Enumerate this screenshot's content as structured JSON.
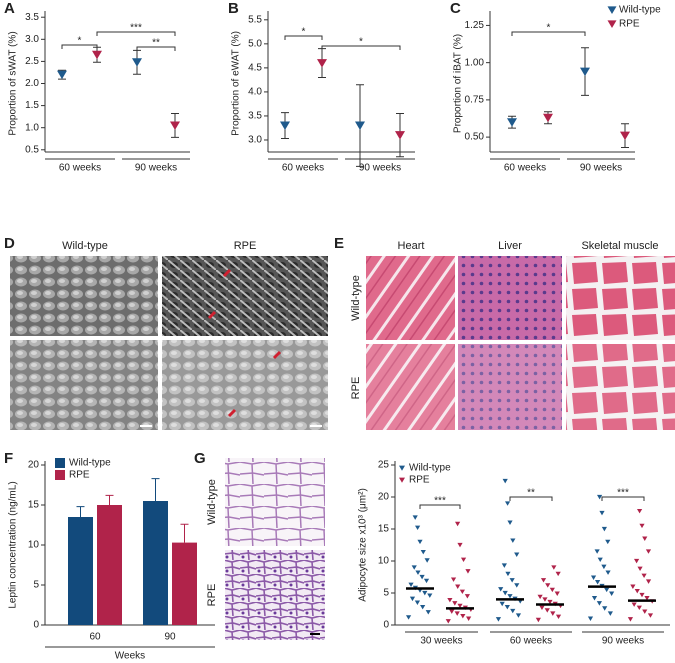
{
  "chart_data": [
    {
      "type": "point",
      "label": "A",
      "ylabel": "Proportion of sWAT (%)",
      "categories": [
        "60 weeks",
        "90 weeks"
      ],
      "ylim": [
        0.45,
        3.55
      ],
      "yticks": [
        0.5,
        {
          "value": 1,
          "label": "1.0"
        },
        1.5,
        {
          "value": 2,
          "label": "2.0"
        },
        2.5,
        {
          "value": 3,
          "label": "3.0"
        },
        3.5
      ],
      "series": [
        {
          "color": "#1f5a8c",
          "values": [
            2.2,
            2.48
          ],
          "errors": [
            0.1,
            0.27
          ]
        },
        {
          "color": "#b0234a",
          "values": [
            2.65,
            1.05
          ],
          "errors": [
            0.17,
            0.27
          ]
        }
      ],
      "annotations": [
        "*",
        "***",
        "**"
      ]
    },
    {
      "type": "point",
      "label": "B",
      "ylabel": "Proportion of eWAT (%)",
      "categories": [
        "60 weeks",
        "90 weeks"
      ],
      "ylim": [
        2.75,
        5.6
      ],
      "yticks": [
        {
          "value": 3,
          "label": "3.0"
        },
        3.5,
        {
          "value": 4,
          "label": "4.0"
        },
        4.5,
        {
          "value": 5,
          "label": "5.0"
        },
        5.5
      ],
      "series": [
        {
          "color": "#1f5a8c",
          "values": [
            3.3,
            3.3
          ],
          "errors": [
            0.27,
            0.85
          ]
        },
        {
          "color": "#b0234a",
          "values": [
            4.6,
            3.1
          ],
          "errors": [
            0.3,
            0.45
          ]
        }
      ],
      "annotations": [
        "*",
        "*"
      ]
    },
    {
      "type": "point",
      "label": "C",
      "ylabel": "Proportion of iBAT (%)",
      "categories": [
        "60 weeks",
        "90 weeks"
      ],
      "ylim": [
        0.4,
        1.32
      ],
      "yticks": [
        {
          "value": 0.5,
          "label": "0.50"
        },
        0.75,
        {
          "value": 1,
          "label": "1.00"
        },
        1.25
      ],
      "series": [
        {
          "name": "Wild-type",
          "color": "#1f5a8c",
          "values": [
            0.6,
            0.94
          ],
          "errors": [
            0.04,
            0.16
          ]
        },
        {
          "name": "RPE",
          "color": "#b0234a",
          "values": [
            0.63,
            0.51
          ],
          "errors": [
            0.04,
            0.08
          ]
        }
      ],
      "annotations": [
        "*"
      ]
    },
    {
      "type": "bar",
      "label": "F",
      "ylabel": "Leptin concentration (ng/mL)",
      "xlabel": "Weeks",
      "categories": [
        "60",
        "90"
      ],
      "ylim": [
        0,
        20
      ],
      "yticks": [
        0,
        5,
        10,
        15,
        20
      ],
      "series": [
        {
          "name": "Wild-type",
          "color": "#124a7c",
          "values": [
            13.5,
            15.5
          ],
          "errors": [
            1.3,
            2.8
          ]
        },
        {
          "name": "RPE",
          "color": "#b0234a",
          "values": [
            15,
            10.3
          ],
          "errors": [
            1.2,
            2.3
          ]
        }
      ]
    },
    {
      "type": "dot",
      "label": "G",
      "ylabel": "Adipocyte size x10³ (μm²)",
      "image_rows": [
        "Wild-type",
        "RPE"
      ],
      "categories": [
        "30 weeks",
        "60 weeks",
        "90 weeks"
      ],
      "ylim": [
        0,
        25
      ],
      "yticks": [
        0,
        5,
        10,
        15,
        20,
        25
      ],
      "series": [
        {
          "name": "Wild-type",
          "color": "#1f5a8c",
          "means": [
            5.7,
            4.0,
            6.0
          ],
          "values": [
            [
              1.2,
              2.0,
              2.8,
              3.5,
              4.1,
              4.6,
              5.0,
              5.4,
              5.8,
              6.3,
              6.9,
              7.5,
              8.2,
              9.0,
              10.1,
              11.4,
              13.0,
              15.2,
              16.8
            ],
            [
              0.9,
              1.5,
              2.2,
              2.8,
              3.3,
              3.7,
              4.1,
              4.5,
              5.0,
              5.6,
              6.2,
              7.0,
              8.0,
              9.3,
              11.0,
              13.2,
              16.0,
              19.0,
              22.5
            ],
            [
              1.0,
              1.8,
              2.6,
              3.4,
              4.2,
              4.9,
              5.5,
              6.1,
              6.7,
              7.4,
              8.2,
              9.1,
              10.2,
              11.5,
              13.0,
              15.0,
              17.5,
              20.0
            ]
          ]
        },
        {
          "name": "RPE",
          "color": "#b0234a",
          "means": [
            2.6,
            3.2,
            3.8
          ],
          "values": [
            [
              0.6,
              1.0,
              1.4,
              1.8,
              2.1,
              2.4,
              2.7,
              3.0,
              3.4,
              3.9,
              4.5,
              5.2,
              6.0,
              7.1,
              8.4,
              10.2,
              12.5,
              15.8
            ],
            [
              0.8,
              1.3,
              1.8,
              2.3,
              2.7,
              3.0,
              3.3,
              3.6,
              4.0,
              4.4,
              4.9,
              5.5,
              6.2,
              7.0,
              8.0,
              9.0
            ],
            [
              0.9,
              1.5,
              2.1,
              2.7,
              3.2,
              3.7,
              4.2,
              4.7,
              5.3,
              6.0,
              6.8,
              7.7,
              8.8,
              10.0,
              11.5,
              13.5,
              15.5,
              17.8
            ]
          ]
        }
      ],
      "annotations": [
        "***",
        "**",
        "***"
      ]
    }
  ],
  "images": {
    "D": {
      "label": "D",
      "columns": [
        "Wild-type",
        "RPE"
      ]
    },
    "E": {
      "label": "E",
      "columns": [
        "Heart",
        "Liver",
        "Skeletal muscle"
      ],
      "rows": [
        "Wild-type",
        "RPE"
      ]
    }
  }
}
